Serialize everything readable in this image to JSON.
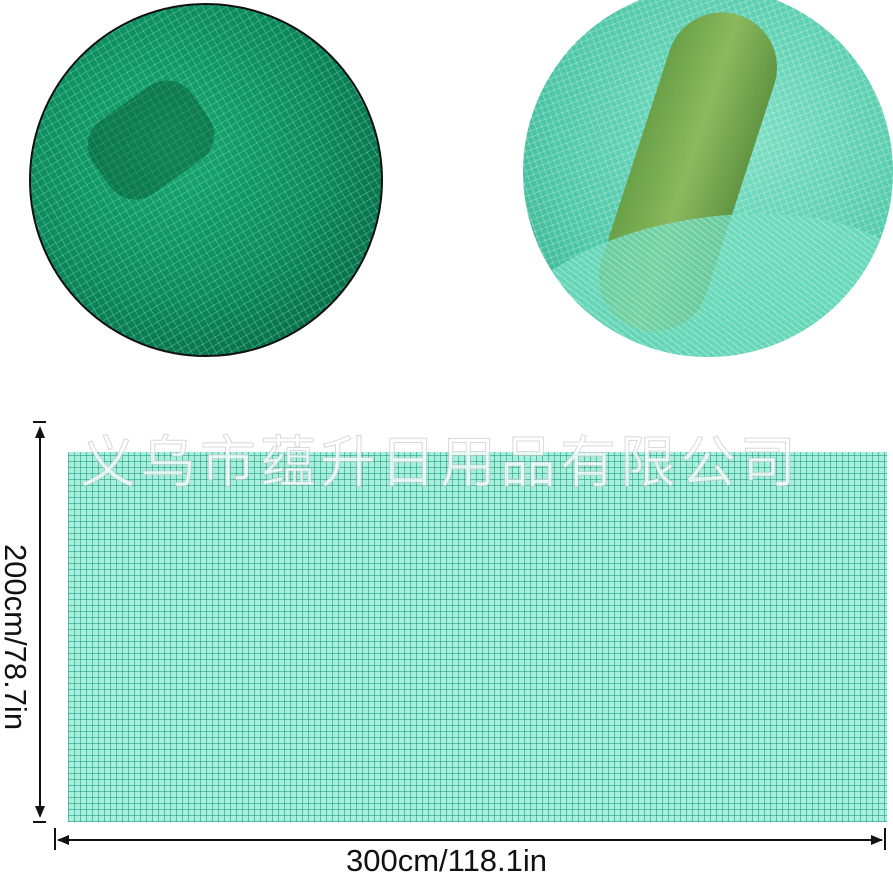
{
  "images": {
    "closeup_left": "dark green mesh close-up",
    "closeup_right": "light green mesh over tube close-up"
  },
  "watermark": "义乌市蕴升日用品有限公司",
  "dimensions": {
    "width_label": "300cm/118.1in",
    "height_label": "200cm/78.7in"
  },
  "colors": {
    "mesh": "#a8f0de",
    "dark_mesh": "#0e8a5e"
  }
}
